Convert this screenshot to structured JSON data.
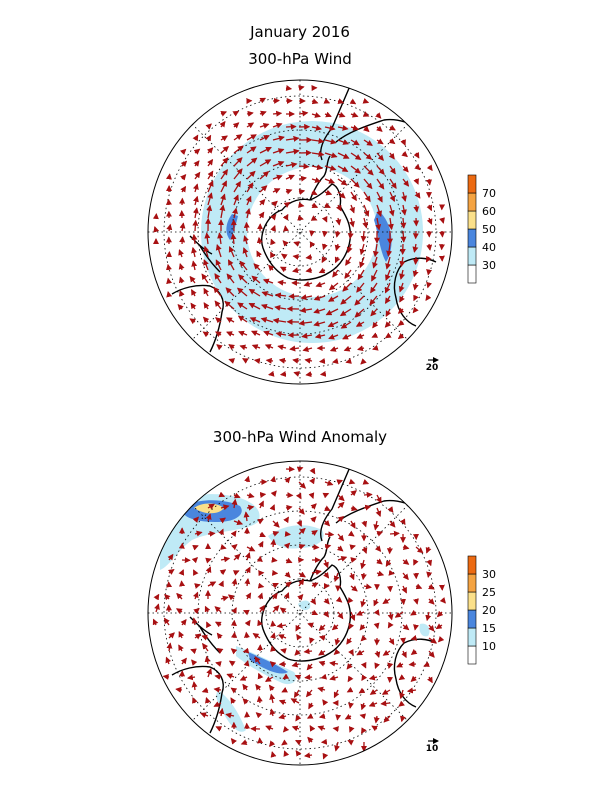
{
  "figure": {
    "title_line1": "January 2016",
    "title_line2": "300-hPa Wind"
  },
  "panels": [
    {
      "key": "wind",
      "title": "300-hPa Wind",
      "reference_vector_label": "20",
      "colorbar": {
        "levels": [
          30,
          40,
          50,
          60,
          70
        ],
        "labels": [
          "30",
          "40",
          "50",
          "60",
          "70"
        ],
        "colors": [
          "#ffffff",
          "#bfeaf6",
          "#4a86de",
          "#fbe08a",
          "#f4a342",
          "#ec6a12"
        ]
      }
    },
    {
      "key": "anomaly",
      "title": "300-hPa Wind Anomaly",
      "reference_vector_label": "10",
      "colorbar": {
        "levels": [
          10,
          15,
          20,
          25,
          30
        ],
        "labels": [
          "10",
          "15",
          "20",
          "25",
          "30"
        ],
        "colors": [
          "#ffffff",
          "#bfeaf6",
          "#4a86de",
          "#fbe08a",
          "#f4a342",
          "#ec6a12"
        ]
      }
    }
  ],
  "style": {
    "vector_color": "#a81012",
    "coast_color": "#000000",
    "grid_color": "#000000"
  },
  "chart_data": {
    "type": "other",
    "projection": "south-polar stereographic",
    "variables": [
      "300-hPa Wind",
      "300-hPa Wind Anomaly"
    ]
  }
}
